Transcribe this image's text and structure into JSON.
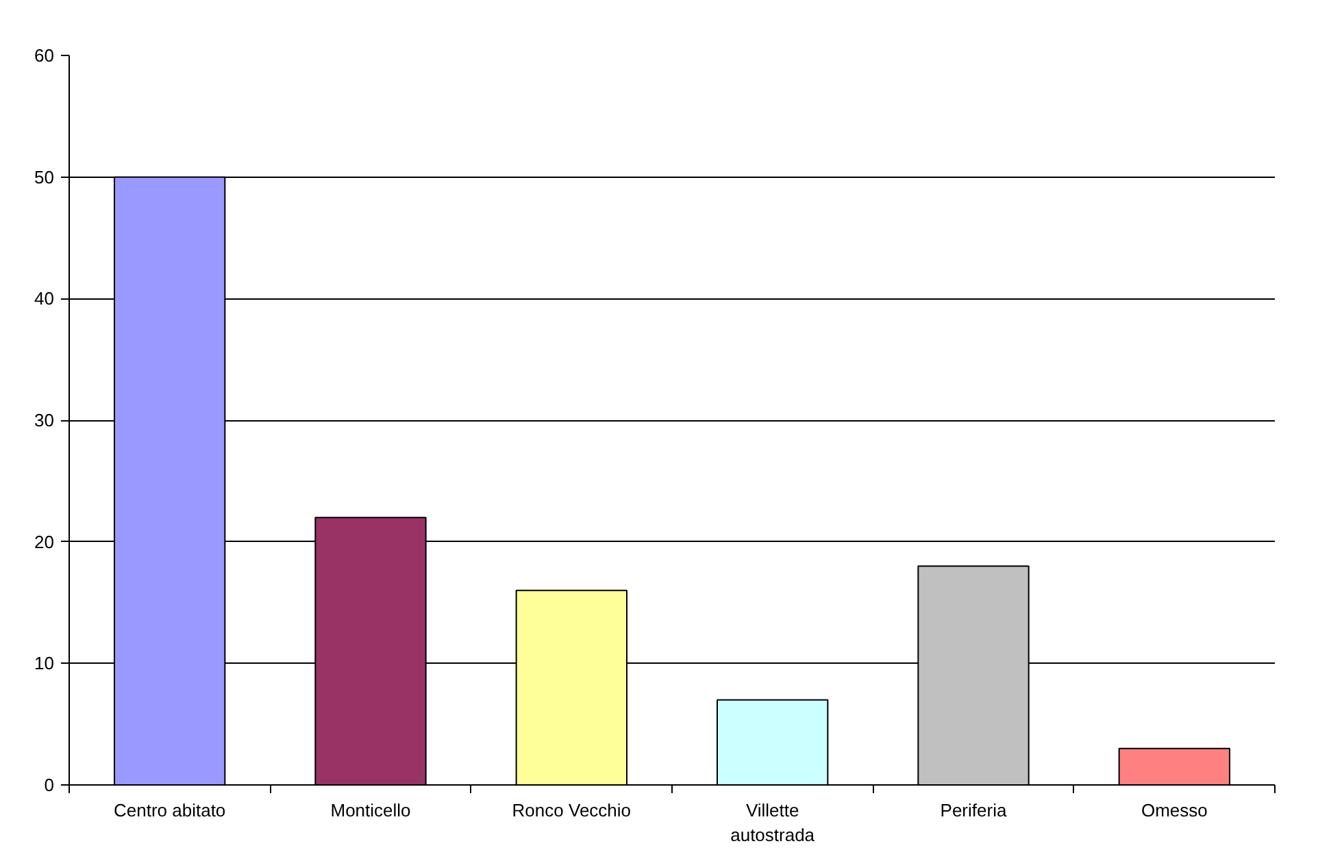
{
  "chart_data": {
    "type": "bar",
    "categories": [
      "Centro abitato",
      "Monticello",
      "Ronco Vecchio",
      "Villette autostrada",
      "Periferia",
      "Omesso"
    ],
    "values": [
      50,
      22,
      16,
      7,
      18,
      3
    ],
    "colors": [
      "#9999ff",
      "#993366",
      "#ffff99",
      "#ccffff",
      "#c0c0c0",
      "#ff8080"
    ],
    "ylim": [
      0,
      60
    ],
    "yticks": [
      0,
      10,
      20,
      30,
      40,
      50,
      60
    ],
    "grid": "y"
  }
}
